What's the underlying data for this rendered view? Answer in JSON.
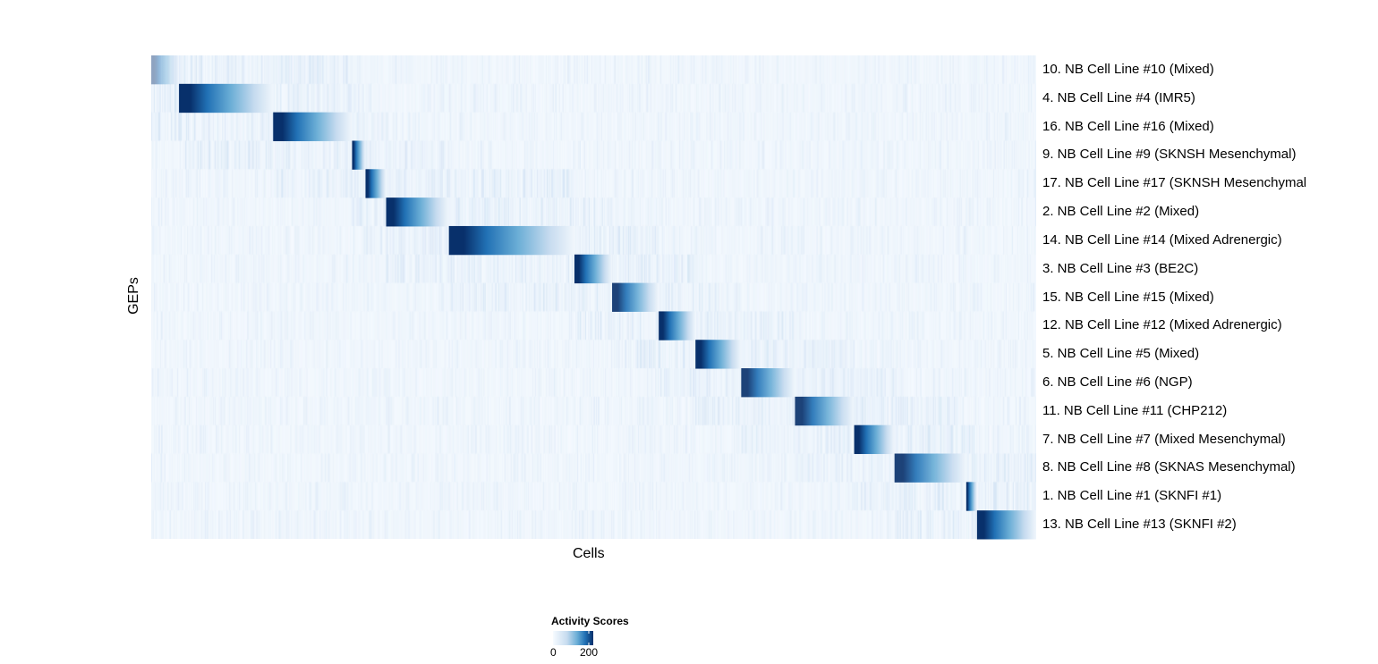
{
  "chart_data": {
    "type": "heatmap",
    "title": "",
    "xlabel": "Cells",
    "ylabel": "GEPs",
    "legend": {
      "title": "Activity Scores",
      "ticks": [
        0,
        200
      ],
      "range": [
        0,
        220
      ],
      "placement": "bottom"
    },
    "colormap": [
      "#f7fbff",
      "#c6dbef",
      "#6baed6",
      "#2171b5",
      "#08306b"
    ],
    "rows": [
      {
        "label": "10. NB Cell Line #10 (Mixed)",
        "cluster_cells": 31,
        "peak": 90
      },
      {
        "label": "4. NB Cell Line #4 (IMR5)",
        "cluster_cells": 105,
        "peak": 220
      },
      {
        "label": "16. NB Cell Line #16 (Mixed)",
        "cluster_cells": 88,
        "peak": 220
      },
      {
        "label": "9. NB Cell Line #9 (SKNSH Mesenchymal)",
        "cluster_cells": 15,
        "peak": 220
      },
      {
        "label": "17. NB Cell Line #17 (SKNSH Mesenchymal",
        "cluster_cells": 23,
        "peak": 220
      },
      {
        "label": "2. NB Cell Line #2 (Mixed)",
        "cluster_cells": 70,
        "peak": 220
      },
      {
        "label": "14. NB Cell Line #14 (Mixed Adrenergic)",
        "cluster_cells": 140,
        "peak": 220
      },
      {
        "label": "3. NB Cell Line #3 (BE2C)",
        "cluster_cells": 42,
        "peak": 220
      },
      {
        "label": "15. NB Cell Line #15 (Mixed)",
        "cluster_cells": 52,
        "peak": 200
      },
      {
        "label": "12. NB Cell Line #12 (Mixed Adrenergic)",
        "cluster_cells": 41,
        "peak": 220
      },
      {
        "label": "5. NB Cell Line #5 (Mixed)",
        "cluster_cells": 51,
        "peak": 220
      },
      {
        "label": "6. NB Cell Line #6 (NGP)",
        "cluster_cells": 60,
        "peak": 200
      },
      {
        "label": "11. NB Cell Line #11 (CHP212)",
        "cluster_cells": 66,
        "peak": 200
      },
      {
        "label": "7. NB Cell Line #7 (Mixed Mesenchymal)",
        "cluster_cells": 45,
        "peak": 220
      },
      {
        "label": "8. NB Cell Line #8 (SKNAS Mesenchymal)",
        "cluster_cells": 80,
        "peak": 200
      },
      {
        "label": "1. NB Cell Line #1 (SKNFI #1)",
        "cluster_cells": 12,
        "peak": 220
      },
      {
        "label": "13. NB Cell Line #13 (SKNFI #2)",
        "cluster_cells": 66,
        "peak": 220
      }
    ]
  }
}
